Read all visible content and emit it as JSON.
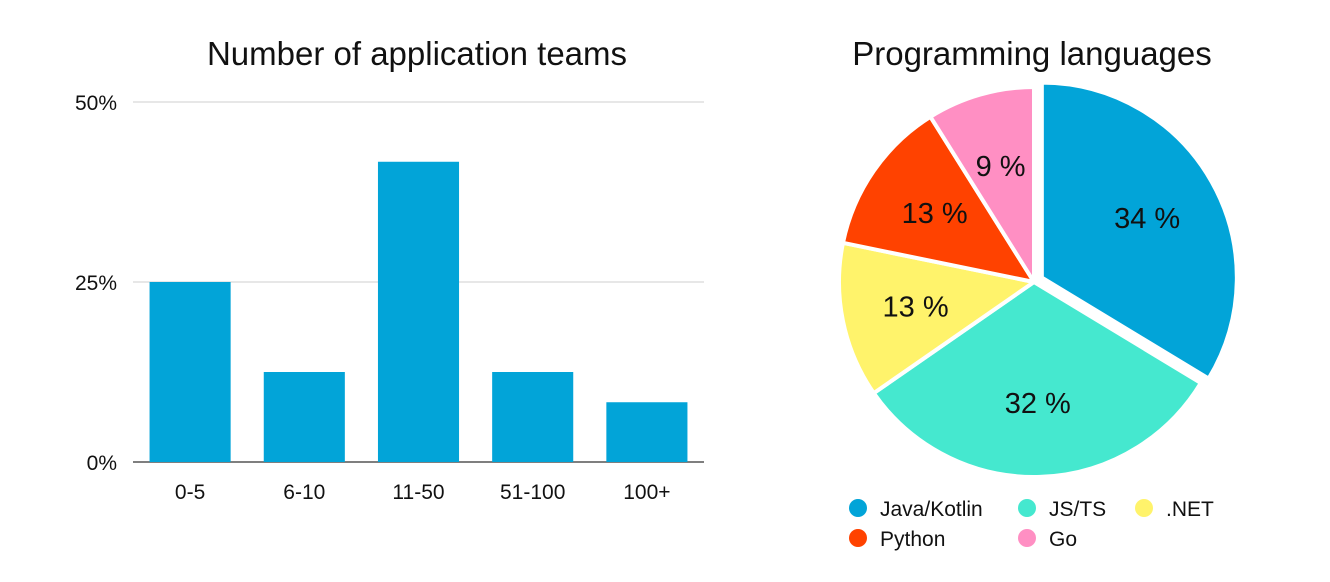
{
  "chart_data": [
    {
      "type": "bar",
      "title": "Number of application teams",
      "categories": [
        "0-5",
        "6-10",
        "11-50",
        "51-100",
        "100+"
      ],
      "values": [
        25,
        12.5,
        41.7,
        12.5,
        8.3
      ],
      "ylim": [
        0,
        50
      ],
      "yticks": [
        0,
        25,
        50
      ],
      "ytick_labels": [
        "0%",
        "25%",
        "50%"
      ],
      "grid": true,
      "color": "#02A4D8"
    },
    {
      "type": "pie",
      "title": "Programming languages",
      "slices": [
        {
          "name": "Java/Kotlin",
          "value": 34,
          "label": "34 %",
          "color": "#02A4D8",
          "exploded": true
        },
        {
          "name": "JS/TS",
          "value": 32,
          "label": "32 %",
          "color": "#45E8CF",
          "exploded": false
        },
        {
          "name": ".NET",
          "value": 13,
          "label": "13 %",
          "color": "#FFF36B",
          "exploded": false
        },
        {
          "name": "Python",
          "value": 13,
          "label": "13 %",
          "color": "#FF4200",
          "exploded": false
        },
        {
          "name": "Go",
          "value": 9,
          "label": "9 %",
          "color": "#FF8FC3",
          "exploded": false
        }
      ],
      "legend_position": "bottom"
    }
  ]
}
